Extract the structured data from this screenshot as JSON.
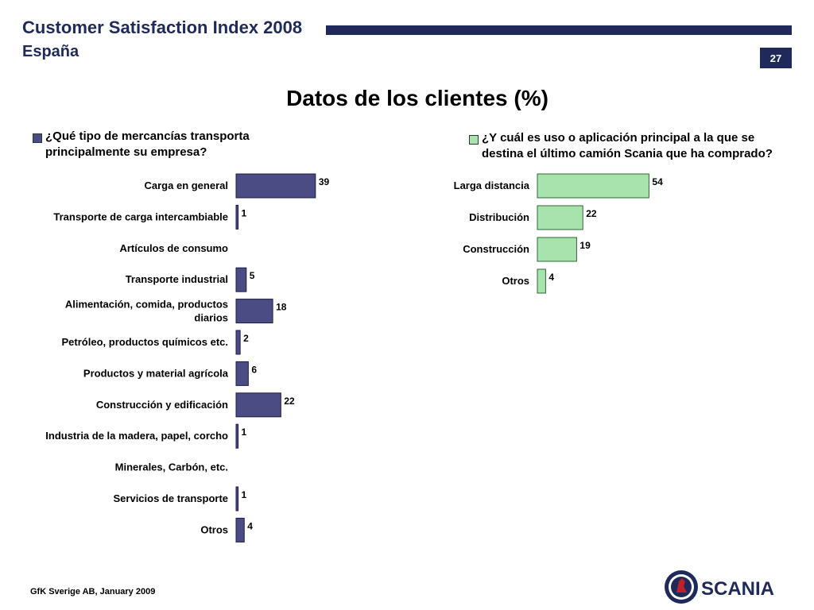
{
  "header": {
    "title": "Customer Satisfaction Index 2008",
    "subtitle": "España",
    "page_number": "27"
  },
  "main_title": "Datos de los clientes (%)",
  "footer": {
    "source": "GfK Sverige AB, January 2009"
  },
  "logo": {
    "text": "SCANIA",
    "icon": "scania-griffin-icon"
  },
  "colors": {
    "header_blue": "#1f2a5a",
    "left_bar_fill": "#4c4c84",
    "left_bar_stroke": "#1c1c40",
    "right_bar_fill": "#a8e3ad",
    "right_bar_stroke": "#2d6a33"
  },
  "chart_data": [
    {
      "type": "bar",
      "orientation": "horizontal",
      "title": "¿Qué tipo de mercancías transporta principalmente su empresa?",
      "categories": [
        "Carga en general",
        "Transporte de carga intercambiable",
        "Artículos de consumo",
        "Transporte industrial",
        "Alimentación, comida, productos diarios",
        "Petróleo, productos químicos etc.",
        "Productos y material agrícola",
        "Construcción y edificación",
        "Industria de la madera, papel, corcho",
        "Minerales, Carbón, etc.",
        "Servicios de transporte",
        "Otros"
      ],
      "values": [
        39,
        1,
        null,
        5,
        18,
        2,
        6,
        22,
        1,
        null,
        1,
        4
      ],
      "xlim": [
        0,
        100
      ],
      "grid": false,
      "legend_position": "top-left"
    },
    {
      "type": "bar",
      "orientation": "horizontal",
      "title": "¿Y cuál es uso o aplicación principal a la que se destina el último camión Scania que ha comprado?",
      "categories": [
        "Larga distancia",
        "Distribución",
        "Construcción",
        "Otros"
      ],
      "values": [
        54,
        22,
        19,
        4
      ],
      "xlim": [
        0,
        100
      ],
      "grid": false,
      "legend_position": "top-left"
    }
  ]
}
